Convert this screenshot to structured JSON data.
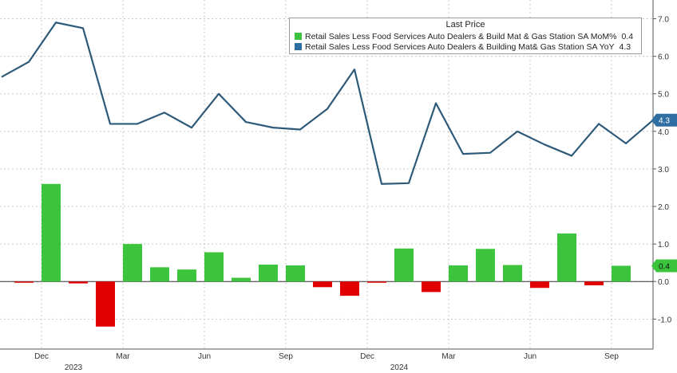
{
  "chart_data": {
    "type": "bar+line",
    "legend_title": "Last Price",
    "x_ticks": [
      "Dec",
      "Mar",
      "Jun",
      "Sep",
      "Dec",
      "Mar",
      "Jun",
      "Sep"
    ],
    "x_year_labels": [
      "2023",
      "2024"
    ],
    "ylim": [
      -1.8,
      7.5
    ],
    "y_ticks": [
      "-1.0",
      "0.0",
      "1.0",
      "2.0",
      "3.0",
      "4.0",
      "5.0",
      "6.0",
      "7.0"
    ],
    "series": [
      {
        "name": "Retail Sales Less Food Services Auto Dealers & Build Mat & Gas Station SA MoM%",
        "last": "0.4",
        "type": "bar",
        "color_pos": "#3cc43c",
        "color_neg": "#e00000",
        "values": [
          -0.02,
          2.6,
          -0.05,
          -1.2,
          1.0,
          0.38,
          0.32,
          0.78,
          0.1,
          0.45,
          0.43,
          -0.15,
          -0.38,
          -0.02,
          0.88,
          -0.28,
          0.43,
          0.87,
          0.44,
          -0.17,
          1.28,
          -0.1,
          0.42
        ]
      },
      {
        "name": "Retail Sales Less Food Services Auto Dealers & Building Mat& Gas Station SA YoY",
        "last": "4.3",
        "type": "line",
        "color": "#2e5a7a",
        "values": [
          5.45,
          5.85,
          6.9,
          6.75,
          4.2,
          4.2,
          4.5,
          4.1,
          5.0,
          4.25,
          4.1,
          4.05,
          4.6,
          5.65,
          2.6,
          2.62,
          4.75,
          3.4,
          3.43,
          4.0,
          3.65,
          3.35,
          4.2,
          3.68,
          4.3
        ]
      }
    ],
    "last_labels": {
      "line": "4.3",
      "bar": "0.4"
    }
  }
}
